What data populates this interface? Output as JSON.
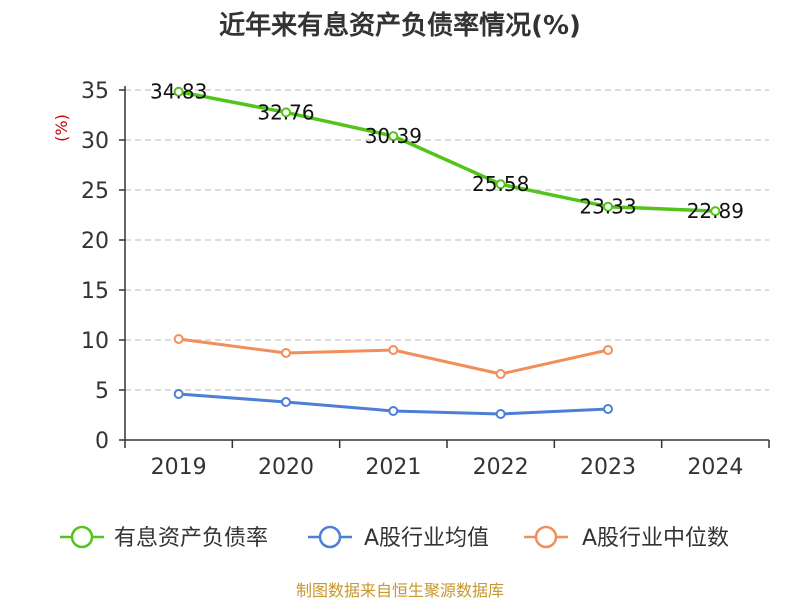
{
  "chart_data": {
    "type": "line",
    "title": "近年来有息资产负债率情况(%)",
    "ylabel": "(%)",
    "xlabel": "",
    "categories": [
      "2019",
      "2020",
      "2021",
      "2022",
      "2023",
      "2024"
    ],
    "yticks": [
      "0",
      "5",
      "10",
      "15",
      "20",
      "25",
      "30",
      "35"
    ],
    "ylim": [
      0,
      35
    ],
    "grid": true,
    "legend_position": "bottom",
    "series": [
      {
        "name": "有息资产负债率",
        "color": "#52c41a",
        "values": [
          34.83,
          32.76,
          30.39,
          25.58,
          23.33,
          22.89
        ],
        "labels": [
          "34.83",
          "32.76",
          "30.39",
          "25.58",
          "23.33",
          "22.89"
        ]
      },
      {
        "name": "A股行业均值",
        "color": "#4e7fd6",
        "values": [
          4.6,
          3.8,
          2.9,
          2.6,
          3.1,
          null
        ]
      },
      {
        "name": "A股行业中位数",
        "color": "#f28e5b",
        "values": [
          10.1,
          8.7,
          9.0,
          6.6,
          9.0,
          null
        ]
      }
    ]
  },
  "source": {
    "text": "制图数据来自恒生聚源数据库",
    "color": "#c8972d"
  }
}
